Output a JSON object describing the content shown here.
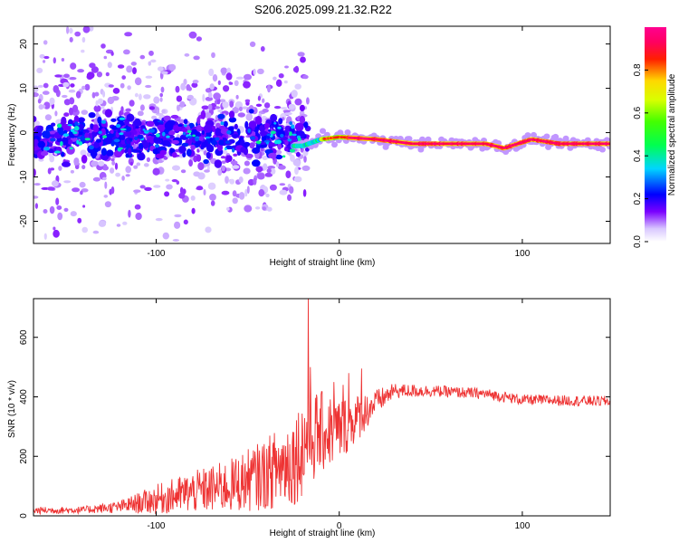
{
  "title": "S206.2025.099.21.32.R22",
  "chart_data": [
    {
      "type": "heatmap",
      "xlabel": "Height of straight line (km)",
      "ylabel": "Frequency (Hz)",
      "xlim": [
        -167,
        148
      ],
      "ylim": [
        -25,
        24
      ],
      "x_ticks": [
        -100,
        0,
        100
      ],
      "y_ticks": [
        -20,
        -10,
        0,
        10,
        20
      ],
      "colorbar": {
        "label": "Normalized spectral amplitude",
        "range": [
          0,
          1
        ],
        "ticks": [
          "0.0",
          "0.2",
          "0.4",
          "0.6",
          "0.8"
        ]
      },
      "ridge_frequency": [
        {
          "x": -20,
          "y": -3
        },
        {
          "x": -10,
          "y": -1.5
        },
        {
          "x": 0,
          "y": -1
        },
        {
          "x": 20,
          "y": -1.5
        },
        {
          "x": 40,
          "y": -2.5
        },
        {
          "x": 80,
          "y": -2.5
        },
        {
          "x": 90,
          "y": -3.5
        },
        {
          "x": 105,
          "y": -1.5
        },
        {
          "x": 120,
          "y": -2.5
        },
        {
          "x": 148,
          "y": -2.5
        }
      ]
    },
    {
      "type": "line",
      "xlabel": "Height of straight line (km)",
      "ylabel": "SNR (10 * v/v)",
      "xlim": [
        -167,
        148
      ],
      "ylim": [
        0,
        730
      ],
      "x_ticks": [
        -100,
        0,
        100
      ],
      "y_ticks": [
        0,
        200,
        400,
        600
      ],
      "color": "#ee3333",
      "envelope": [
        {
          "x": -167,
          "mean": 18,
          "spread": 12
        },
        {
          "x": -140,
          "mean": 20,
          "spread": 12
        },
        {
          "x": -120,
          "mean": 30,
          "spread": 20
        },
        {
          "x": -100,
          "mean": 55,
          "spread": 50
        },
        {
          "x": -80,
          "mean": 80,
          "spread": 70
        },
        {
          "x": -60,
          "mean": 100,
          "spread": 90
        },
        {
          "x": -40,
          "mean": 140,
          "spread": 120
        },
        {
          "x": -25,
          "mean": 190,
          "spread": 160
        },
        {
          "x": -17,
          "mean": 260,
          "spread": 170
        },
        {
          "x": -10,
          "mean": 280,
          "spread": 140
        },
        {
          "x": 0,
          "mean": 290,
          "spread": 110
        },
        {
          "x": 10,
          "mean": 330,
          "spread": 80
        },
        {
          "x": 20,
          "mean": 380,
          "spread": 45
        },
        {
          "x": 30,
          "mean": 420,
          "spread": 25
        },
        {
          "x": 50,
          "mean": 420,
          "spread": 20
        },
        {
          "x": 80,
          "mean": 410,
          "spread": 18
        },
        {
          "x": 100,
          "mean": 390,
          "spread": 18
        },
        {
          "x": 148,
          "mean": 385,
          "spread": 18
        }
      ],
      "peaks": [
        {
          "x": -17,
          "y": 730
        },
        {
          "x": -16,
          "y": 500
        },
        {
          "x": 5,
          "y": 480
        },
        {
          "x": 12,
          "y": 495
        },
        {
          "x": -3,
          "y": 450
        },
        {
          "x": 2,
          "y": 440
        }
      ]
    }
  ]
}
